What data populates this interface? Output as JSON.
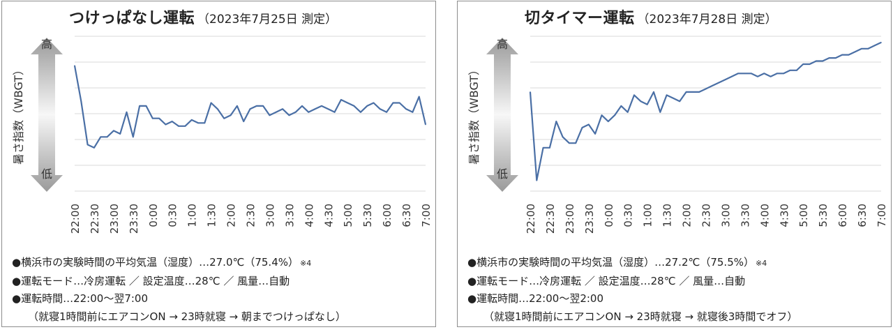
{
  "chart_data": [
    {
      "type": "line",
      "title": "つけっぱなし運転",
      "subtitle": "（2023年7月25日 測定）",
      "ylabel": "暑さ指数（WBGT）",
      "y_high_label": "高",
      "y_low_label": "低",
      "x_tick_labels": [
        "22:00",
        "22:30",
        "23:00",
        "23:30",
        "0:00",
        "0:30",
        "1:00",
        "1:30",
        "2:00",
        "2:30",
        "3:00",
        "3:30",
        "4:00",
        "4:30",
        "5:00",
        "5:30",
        "6:00",
        "6:30",
        "7:00"
      ],
      "x_range": [
        0,
        540
      ],
      "ylim": [
        0,
        100
      ],
      "grid": true,
      "line_color": "#4a6fa5",
      "series": [
        {
          "x": [
            0,
            10,
            20,
            30,
            40,
            50,
            60,
            70,
            80,
            90,
            100,
            110,
            120,
            130,
            140,
            150,
            160,
            170,
            180,
            190,
            200,
            210,
            220,
            230,
            240,
            250,
            260,
            270,
            280,
            290,
            300,
            310,
            320,
            330,
            340,
            350,
            360,
            370,
            380,
            390,
            400,
            410,
            420,
            430,
            440,
            450,
            460,
            470,
            480,
            490,
            500,
            510,
            520,
            530,
            540
          ],
          "values": [
            81,
            58,
            30,
            28,
            35,
            35,
            39,
            37,
            51,
            35,
            55,
            55,
            47,
            47,
            43,
            45,
            42,
            42,
            46,
            44,
            44,
            57,
            53,
            47,
            49,
            55,
            45,
            53,
            55,
            55,
            49,
            51,
            53,
            49,
            51,
            55,
            51,
            53,
            55,
            53,
            51,
            59,
            57,
            55,
            51,
            55,
            57,
            53,
            51,
            57,
            57,
            53,
            51,
            61,
            43
          ]
        }
      ],
      "notes": [
        "●横浜市の実験時間の平均気温（湿度）…27.0℃（75.4%）",
        "●運転モード…冷房運転 ／ 設定温度…28℃ ／ 風量…自動",
        "●運転時間…22:00～翌7:00",
        "（就寝1時間前にエアコンON → 23時就寝 → 朝までつけっぱなし）"
      ],
      "note_mark": "※4"
    },
    {
      "type": "line",
      "title": "切タイマー運転",
      "subtitle": "（2023年7月28日 測定）",
      "ylabel": "暑さ指数（WBGT）",
      "y_high_label": "高",
      "y_low_label": "低",
      "x_tick_labels": [
        "22:00",
        "22:30",
        "23:00",
        "23:30",
        "0:00",
        "0:30",
        "1:00",
        "1:30",
        "2:00",
        "2:30",
        "3:00",
        "3:30",
        "4:00",
        "4:30",
        "5:00",
        "5:30",
        "6:00",
        "6:30",
        "7:00"
      ],
      "x_range": [
        0,
        540
      ],
      "ylim": [
        0,
        100
      ],
      "grid": true,
      "line_color": "#4a6fa5",
      "series": [
        {
          "x": [
            0,
            10,
            20,
            30,
            40,
            50,
            60,
            70,
            80,
            90,
            100,
            110,
            120,
            130,
            140,
            150,
            160,
            170,
            180,
            190,
            200,
            210,
            220,
            230,
            240,
            250,
            260,
            270,
            280,
            290,
            300,
            310,
            320,
            330,
            340,
            350,
            360,
            370,
            380,
            390,
            400,
            410,
            420,
            430,
            440,
            450,
            460,
            470,
            480,
            490,
            500,
            510,
            520,
            530,
            540
          ],
          "values": [
            64,
            7,
            28,
            28,
            45,
            35,
            31,
            31,
            41,
            43,
            37,
            49,
            45,
            49,
            55,
            51,
            62,
            58,
            56,
            64,
            51,
            62,
            60,
            58,
            64,
            64,
            64,
            66,
            68,
            70,
            72,
            74,
            76,
            76,
            76,
            74,
            76,
            74,
            76,
            76,
            78,
            78,
            82,
            82,
            84,
            84,
            86,
            86,
            88,
            88,
            90,
            92,
            92,
            94,
            96
          ]
        }
      ],
      "notes": [
        "●横浜市の実験時間の平均気温（湿度）…27.2℃（75.5%）",
        "●運転モード…冷房運転 ／ 設定温度…28℃ ／ 風量…自動",
        "●運転時間…22:00～翌2:00",
        "（就寝1時間前にエアコンON → 23時就寝 → 就寝後3時間でオフ）"
      ],
      "note_mark": "※4"
    }
  ]
}
